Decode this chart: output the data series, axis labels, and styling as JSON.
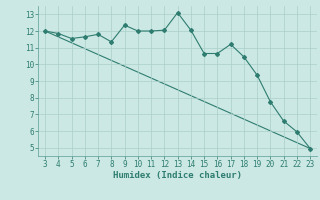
{
  "xlabel": "Humidex (Indice chaleur)",
  "x_values": [
    3,
    4,
    5,
    6,
    7,
    8,
    9,
    10,
    11,
    12,
    13,
    14,
    15,
    16,
    17,
    18,
    19,
    20,
    21,
    22,
    23
  ],
  "line1_y": [
    12.0,
    11.85,
    11.55,
    11.65,
    11.8,
    11.35,
    12.35,
    12.0,
    12.0,
    12.05,
    13.1,
    12.05,
    10.65,
    10.65,
    11.2,
    10.45,
    9.35,
    7.75,
    6.6,
    5.95,
    4.95
  ],
  "trend_x": [
    3,
    23
  ],
  "trend_y": [
    12.0,
    4.95
  ],
  "line_color": "#2e7d70",
  "bg_color": "#cce8e4",
  "grid_color": "#aacfca",
  "spine_color": "#5a9e96",
  "ylim": [
    4.5,
    13.5
  ],
  "xlim": [
    2.5,
    23.5
  ],
  "yticks": [
    5,
    6,
    7,
    8,
    9,
    10,
    11,
    12,
    13
  ],
  "xticks": [
    3,
    4,
    5,
    6,
    7,
    8,
    9,
    10,
    11,
    12,
    13,
    14,
    15,
    16,
    17,
    18,
    19,
    20,
    21,
    22,
    23
  ],
  "tick_fontsize": 5.5,
  "xlabel_fontsize": 6.5
}
